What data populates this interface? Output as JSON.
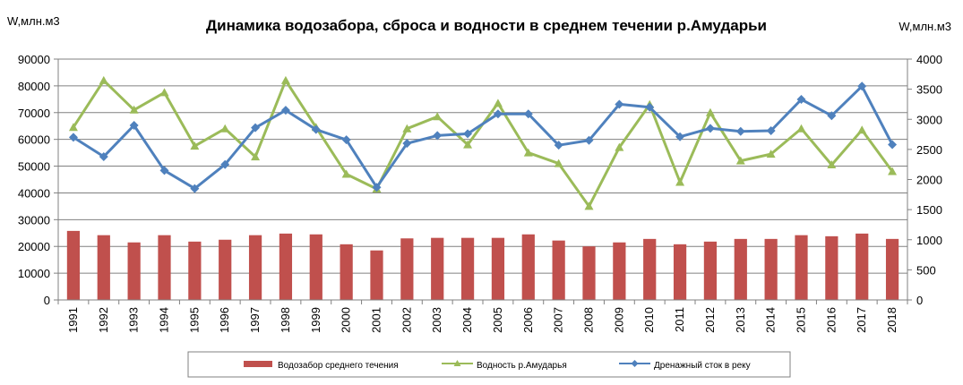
{
  "chart_data": {
    "type": "bar+line",
    "title": "Динамика водозабора, сброса и водности в среднем течении р.Амударьи",
    "y_left_label": "W,млн.м3",
    "y_right_label": "W,млн.м3",
    "y_left_lim": [
      0,
      90000
    ],
    "y_left_ticks": [
      0,
      10000,
      20000,
      30000,
      40000,
      50000,
      60000,
      70000,
      80000,
      90000
    ],
    "y_right_lim": [
      0,
      4000
    ],
    "y_right_ticks": [
      0,
      500,
      1000,
      1500,
      2000,
      2500,
      3000,
      3500,
      4000
    ],
    "grid": true,
    "legend_position": "bottom",
    "categories": [
      "1991",
      "1992",
      "1993",
      "1994",
      "1995",
      "1996",
      "1997",
      "1998",
      "1999",
      "2000",
      "2001",
      "2002",
      "2003",
      "2004",
      "2005",
      "2006",
      "2007",
      "2008",
      "2009",
      "2010",
      "2011",
      "2012",
      "2013",
      "2014",
      "2015",
      "2016",
      "2017",
      "2018"
    ],
    "series": [
      {
        "name": "Водозабор среднего течения",
        "kind": "bar",
        "axis": "left",
        "color": "#c0504d",
        "values": [
          25800,
          24200,
          21500,
          24200,
          21800,
          22500,
          24200,
          24800,
          24500,
          20800,
          18500,
          23000,
          23200,
          23200,
          23200,
          24500,
          22200,
          20000,
          21500,
          22800,
          20800,
          21800,
          22800,
          22800,
          24200,
          23800,
          24800,
          22800
        ]
      },
      {
        "name": "Водность р.Амударья",
        "kind": "line",
        "axis": "left",
        "color": "#9bbb59",
        "marker": "triangle",
        "values": [
          64500,
          82000,
          71000,
          77500,
          57500,
          64000,
          53500,
          82000,
          64500,
          47000,
          41500,
          64000,
          68500,
          58000,
          73500,
          55000,
          51000,
          35000,
          57000,
          73000,
          44000,
          70000,
          52000,
          54500,
          64000,
          50500,
          63500,
          48000
        ]
      },
      {
        "name": "Дренажный сток в реку",
        "kind": "line",
        "axis": "right",
        "color": "#4f81bd",
        "marker": "diamond",
        "values": [
          2700,
          2380,
          2900,
          2150,
          1850,
          2250,
          2860,
          3150,
          2830,
          2660,
          1870,
          2600,
          2730,
          2760,
          3090,
          3090,
          2570,
          2650,
          3250,
          3200,
          2710,
          2850,
          2800,
          2810,
          3330,
          3060,
          3550,
          2580
        ]
      }
    ]
  }
}
